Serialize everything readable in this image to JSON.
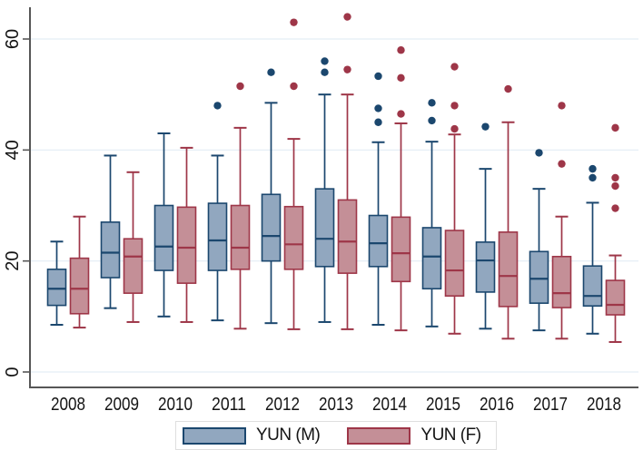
{
  "chart_data": {
    "type": "boxplot",
    "title": "",
    "xlabel": "",
    "ylabel": "",
    "categories": [
      "2008",
      "2009",
      "2010",
      "2011",
      "2012",
      "2013",
      "2014",
      "2015",
      "2016",
      "2017",
      "2018"
    ],
    "y_ticks": [
      0,
      20,
      40,
      60
    ],
    "ylim": [
      -3,
      66
    ],
    "grid": true,
    "legend_position": "bottom-center",
    "series": [
      {
        "name": "YUN (M)",
        "fill": "#91a7bf",
        "stroke": "#1b476e",
        "boxes": [
          {
            "low": 8.5,
            "q1": 12.0,
            "median": 15.0,
            "q3": 18.5,
            "high": 23.5,
            "outliers": []
          },
          {
            "low": 11.5,
            "q1": 17.0,
            "median": 21.5,
            "q3": 27.0,
            "high": 39.0,
            "outliers": []
          },
          {
            "low": 10.0,
            "q1": 18.3,
            "median": 22.6,
            "q3": 30.0,
            "high": 43.0,
            "outliers": []
          },
          {
            "low": 9.3,
            "q1": 18.3,
            "median": 23.7,
            "q3": 30.4,
            "high": 39.0,
            "outliers": [
              48
            ]
          },
          {
            "low": 8.8,
            "q1": 20.0,
            "median": 24.5,
            "q3": 32.0,
            "high": 48.5,
            "outliers": [
              54
            ]
          },
          {
            "low": 9.0,
            "q1": 19.0,
            "median": 24.0,
            "q3": 33.0,
            "high": 50.0,
            "outliers": [
              54,
              56
            ]
          },
          {
            "low": 8.5,
            "q1": 19.0,
            "median": 23.2,
            "q3": 28.2,
            "high": 41.4,
            "outliers": [
              45,
              47.5,
              53.3
            ]
          },
          {
            "low": 8.2,
            "q1": 15.0,
            "median": 20.8,
            "q3": 26.0,
            "high": 41.5,
            "outliers": [
              45.3,
              48.5
            ]
          },
          {
            "low": 7.8,
            "q1": 14.4,
            "median": 20.1,
            "q3": 23.4,
            "high": 36.6,
            "outliers": [
              44.2
            ]
          },
          {
            "low": 7.5,
            "q1": 12.4,
            "median": 16.8,
            "q3": 21.7,
            "high": 33.0,
            "outliers": [
              39.5
            ]
          },
          {
            "low": 6.9,
            "q1": 11.9,
            "median": 13.7,
            "q3": 19.1,
            "high": 30.5,
            "outliers": [
              35,
              36.6
            ]
          }
        ]
      },
      {
        "name": "YUN (F)",
        "fill": "#c48f97",
        "stroke": "#9e3648",
        "boxes": [
          {
            "low": 8.0,
            "q1": 10.5,
            "median": 15.0,
            "q3": 20.5,
            "high": 28.0,
            "outliers": []
          },
          {
            "low": 9.0,
            "q1": 14.2,
            "median": 20.8,
            "q3": 24.0,
            "high": 36.0,
            "outliers": []
          },
          {
            "low": 9.0,
            "q1": 16.0,
            "median": 22.4,
            "q3": 29.7,
            "high": 40.4,
            "outliers": []
          },
          {
            "low": 7.8,
            "q1": 18.5,
            "median": 22.4,
            "q3": 30.0,
            "high": 44.0,
            "outliers": [
              51.5
            ]
          },
          {
            "low": 7.7,
            "q1": 18.5,
            "median": 23.0,
            "q3": 29.8,
            "high": 42.0,
            "outliers": [
              51.5,
              63
            ]
          },
          {
            "low": 7.7,
            "q1": 17.8,
            "median": 23.5,
            "q3": 31.0,
            "high": 50.0,
            "outliers": [
              54.5,
              64
            ]
          },
          {
            "low": 7.5,
            "q1": 16.3,
            "median": 21.4,
            "q3": 27.9,
            "high": 44.8,
            "outliers": [
              46.5,
              53,
              58
            ]
          },
          {
            "low": 6.9,
            "q1": 13.7,
            "median": 18.3,
            "q3": 25.5,
            "high": 42.8,
            "outliers": [
              43.8,
              48,
              55
            ]
          },
          {
            "low": 6.0,
            "q1": 11.8,
            "median": 17.3,
            "q3": 25.2,
            "high": 45.0,
            "outliers": [
              51
            ]
          },
          {
            "low": 6.0,
            "q1": 11.6,
            "median": 14.2,
            "q3": 20.8,
            "high": 28.0,
            "outliers": [
              37.5,
              48
            ]
          },
          {
            "low": 5.4,
            "q1": 10.3,
            "median": 12.1,
            "q3": 16.5,
            "high": 21.0,
            "outliers": [
              29.5,
              33.5,
              35,
              44
            ]
          }
        ]
      }
    ]
  },
  "legend": {
    "items": [
      {
        "label": "YUN (M)"
      },
      {
        "label": "YUN (F)"
      }
    ]
  },
  "colors": {
    "grid": "#e3edf5",
    "axis": "#565656",
    "tick_text": "#141414",
    "background": "#ffffff"
  }
}
